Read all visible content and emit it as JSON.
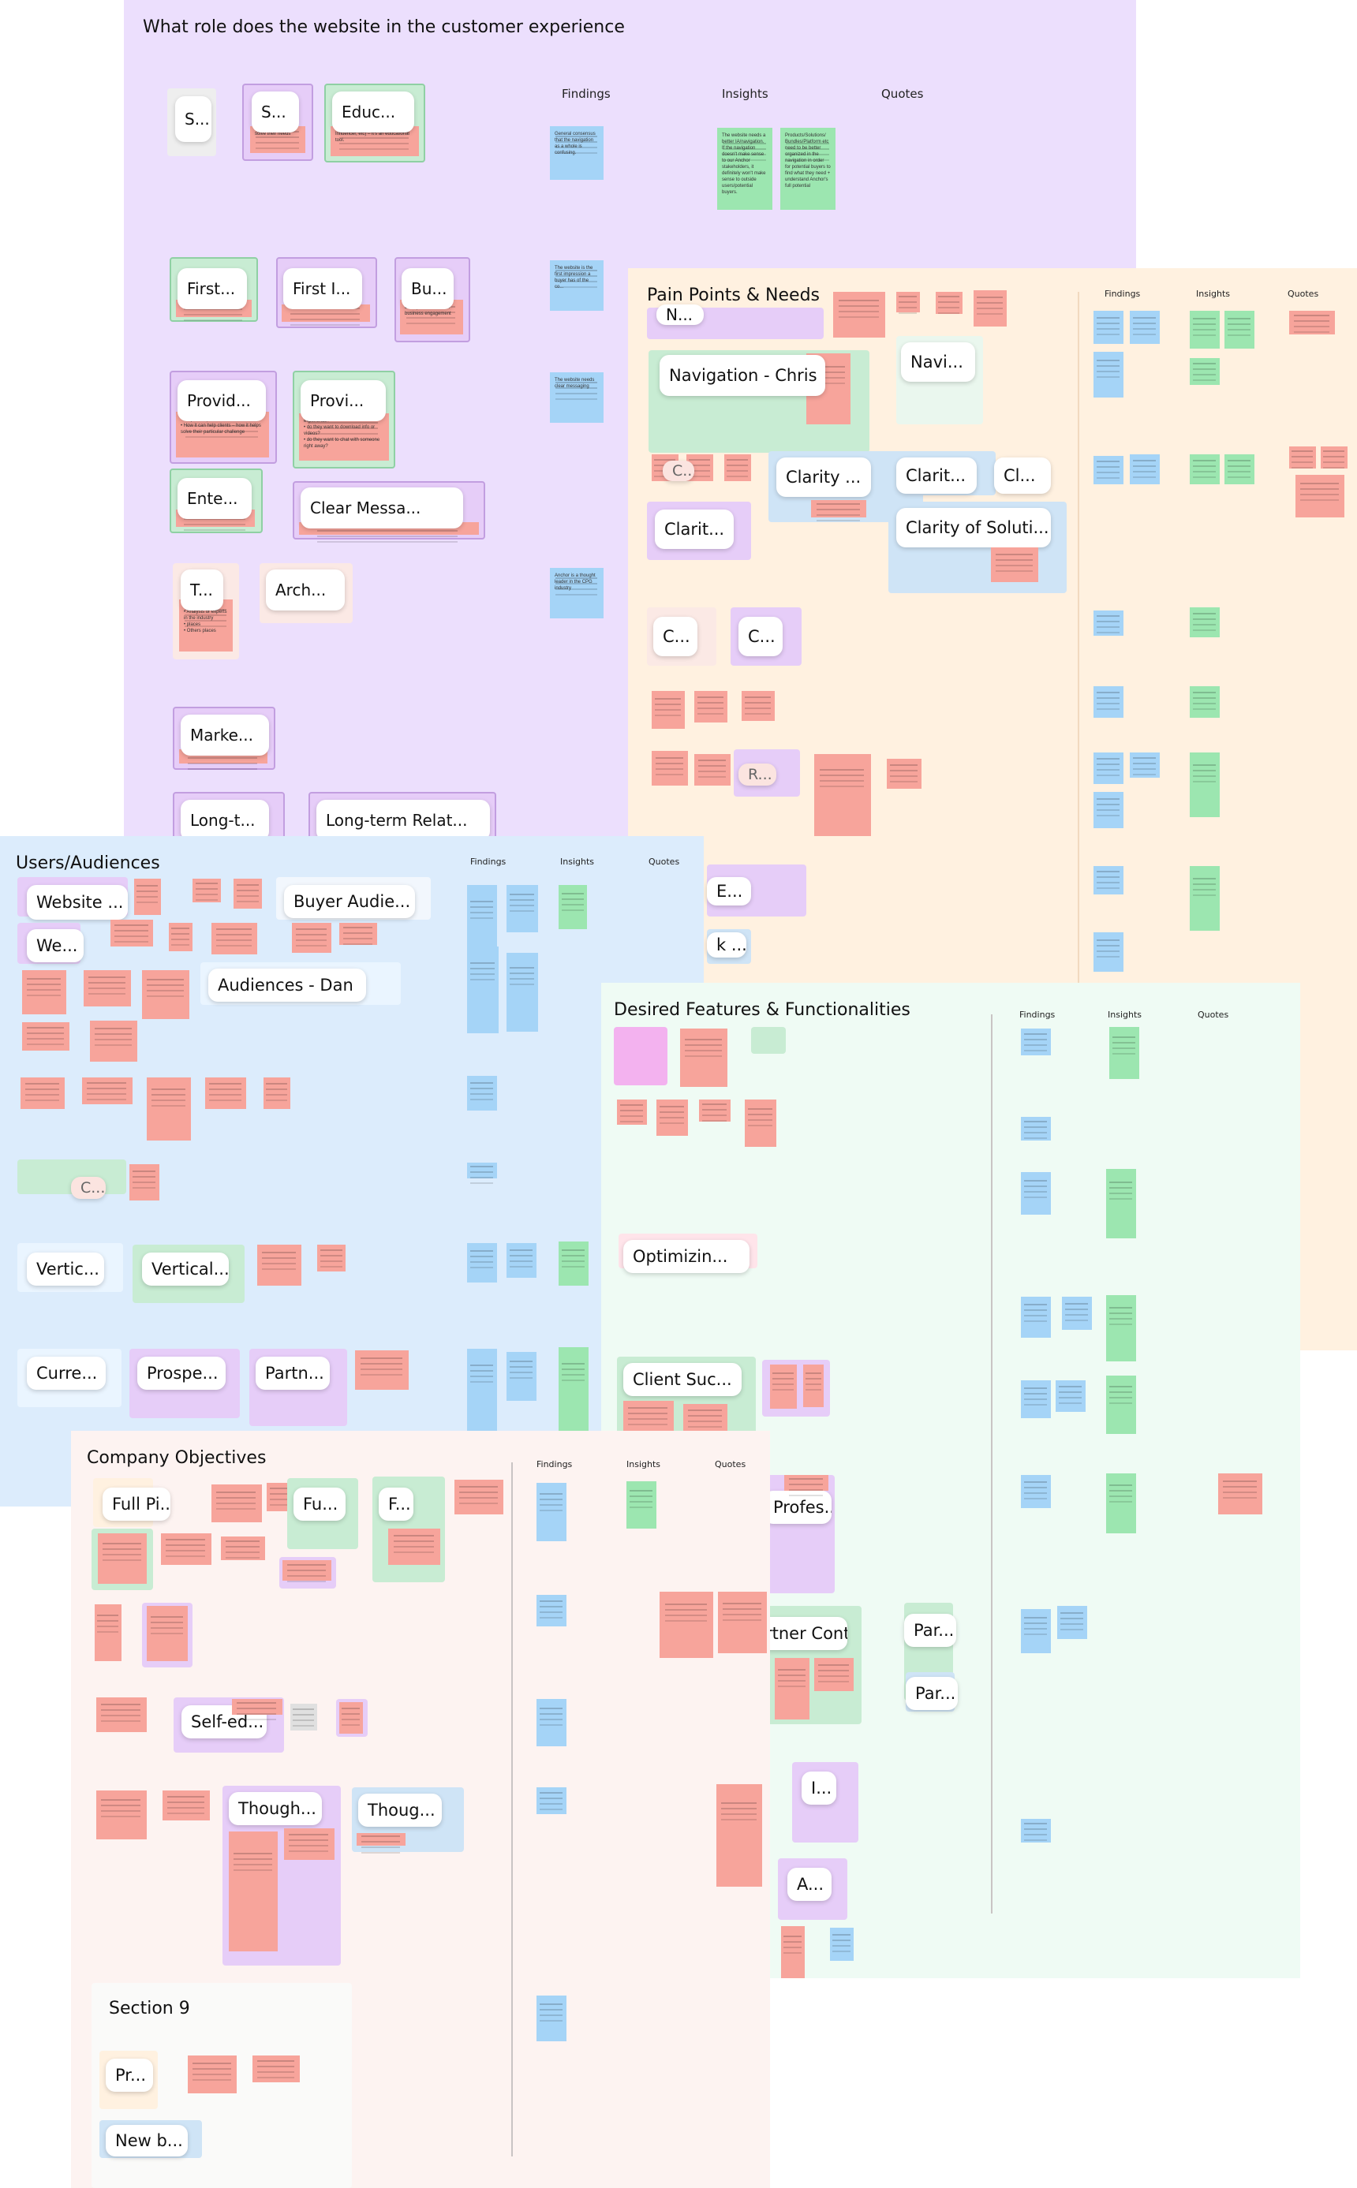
{
  "colors": {
    "section_1": "#ecdffd",
    "section_2": "#fff1e0",
    "section_3": "#dcecfc",
    "section_4": "#effbf4",
    "section_5": "#fdf3f1",
    "section_9": "#fafaf9",
    "note_pink": "#f7a49b",
    "note_blue": "#a5d4f7",
    "note_green": "#9ce6b0",
    "note_purple": "#e6cdf8",
    "note_magenta": "#f3b2ef"
  },
  "column_headers": {
    "findings": "Findings",
    "insights": "Insights",
    "quotes": "Quotes"
  },
  "website_role": {
    "title": "What role does the website in the customer experience",
    "cards": [
      "S...",
      "S...",
      "Educ...",
      "First...",
      "First I...",
      "Bu...",
      "Provid...",
      "Provi...",
      "Ente...",
      "Clear Messa...",
      "T...",
      "Arch...",
      "Marke...",
      "Long-t...",
      "Long-term Relat..."
    ],
    "finding_notes": [
      "General consensus that the navigation as a whole is confusing.",
      "The website is the first impression a buyer has of the co...",
      "The website needs clear messaging",
      "Anchor is a thought leader in the CPG industry"
    ],
    "insight_notes": [
      "The website needs a better IA/navigation. If the navigation doesn't make sense to our Anchor stakeholders, it definitely won't make sense to outside users/potential buyers.",
      "Products/Solutions/ Bundles/Platform etc need to be better organized in the navigation in order for potential buyers to find what they need + understand Anchor's full potential"
    ],
    "card_notes": [
      "solve their needs",
      "Influencer, etc) – it's an educational tool.",
      "Biz – provides a lot of business engagement"
    ],
    "bullets_1": [
      "Why it's important",
      "How it can help clients – how it helps solve their particular challenge"
    ],
    "bullets_2": [
      "experience?",
      "do they want to download info or videos?",
      "do they want to chat with someone right away?"
    ],
    "bullets_3": [
      "Analysts or experts in the industry",
      "places",
      "Others places"
    ]
  },
  "pain_points": {
    "title": "Pain Points & Needs",
    "cards": [
      "N...",
      "Navigation - Chris",
      "Navi...",
      "C...",
      "Clarity ...",
      "Clarit...",
      "Cl...",
      "Clarit...",
      "Clarity of Soluti...",
      "C...",
      "C...",
      "R...",
      "E...",
      "k ..."
    ]
  },
  "users": {
    "title": "Users/Audiences",
    "cards": [
      "Website ...",
      "Buyer Audie...",
      "We...",
      "Audiences - Dan",
      "C...",
      "Vertic...",
      "Vertical...",
      "Curre...",
      "Prospe...",
      "Partn..."
    ]
  },
  "features": {
    "title": "Desired Features & Functionalities",
    "cards": [
      "Optimizin...",
      "Client Suc...",
      "Profes...",
      "rtner Cont...",
      "Par...",
      "Par...",
      "I...",
      "A..."
    ]
  },
  "objectives": {
    "title": "Company Objectives",
    "cards": [
      "Full Pi...",
      "Fu...",
      "F...",
      "Self-ed...",
      "Though...",
      "Thoug..."
    ]
  },
  "section9": {
    "title": "Section 9",
    "cards": [
      "Pr...",
      "New b..."
    ]
  }
}
